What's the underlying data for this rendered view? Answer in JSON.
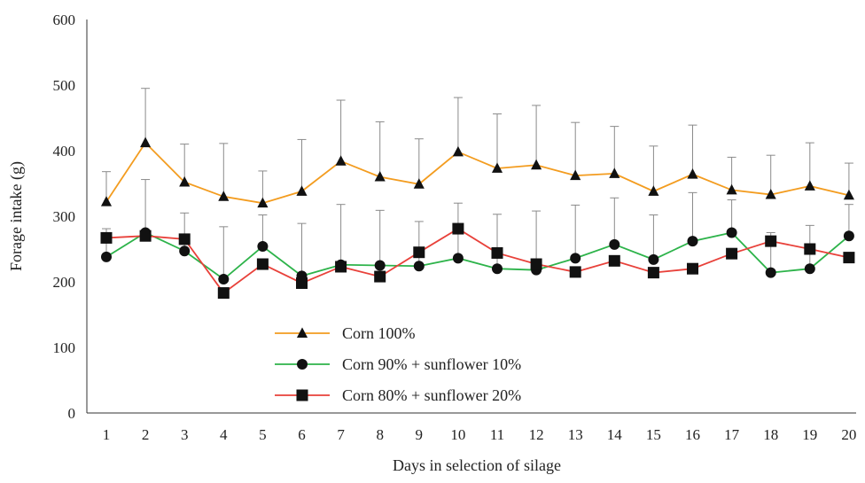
{
  "chart_data": {
    "type": "line",
    "title": "",
    "xlabel": "Days in selection of silage",
    "ylabel": "Forage intake (g)",
    "x": [
      1,
      2,
      3,
      4,
      5,
      6,
      7,
      8,
      9,
      10,
      11,
      12,
      13,
      14,
      15,
      16,
      17,
      18,
      19,
      20
    ],
    "x_tick_labels": [
      "1",
      "2",
      "3",
      "4",
      "5",
      "6",
      "7",
      "8",
      "9",
      "10",
      "11",
      "12",
      "13",
      "14",
      "15",
      "16",
      "17",
      "18",
      "19",
      "20"
    ],
    "ylim": [
      0,
      600
    ],
    "y_ticks": [
      0,
      100,
      200,
      300,
      400,
      500,
      600
    ],
    "y_tick_labels": [
      "0",
      "100",
      "200",
      "300",
      "400",
      "500",
      "600"
    ],
    "grid": false,
    "legend_position": "bottom-center",
    "series": [
      {
        "name": "Corn 100%",
        "color": "#f39c1f",
        "marker": "triangle",
        "values": [
          322,
          412,
          352,
          330,
          320,
          338,
          384,
          360,
          349,
          398,
          373,
          378,
          362,
          365,
          338,
          364,
          340,
          333,
          346,
          332
        ],
        "error_upper": [
          368,
          495,
          410,
          411,
          369,
          417,
          477,
          444,
          418,
          481,
          456,
          469,
          443,
          437,
          407,
          439,
          390,
          393,
          412,
          381
        ]
      },
      {
        "name": "Corn 90% + sunflower 10%",
        "color": "#2db34a",
        "marker": "circle",
        "values": [
          238,
          275,
          247,
          204,
          254,
          209,
          226,
          225,
          224,
          236,
          220,
          218,
          236,
          257,
          234,
          262,
          275,
          214,
          220,
          270
        ],
        "error_upper": [
          281,
          356,
          305,
          284,
          302,
          289,
          318,
          309,
          292,
          320,
          303,
          308,
          317,
          328,
          302,
          336,
          325,
          275,
          286,
          318
        ]
      },
      {
        "name": "Corn 80% + sunflower 20%",
        "color": "#e8413a",
        "marker": "square",
        "values": [
          267,
          270,
          265,
          183,
          227,
          198,
          223,
          208,
          245,
          281,
          244,
          227,
          215,
          232,
          214,
          220,
          243,
          262,
          250,
          237
        ],
        "error_upper": [
          267,
          270,
          265,
          183,
          227,
          198,
          223,
          208,
          245,
          281,
          244,
          227,
          215,
          232,
          214,
          220,
          243,
          262,
          250,
          237
        ]
      }
    ]
  }
}
